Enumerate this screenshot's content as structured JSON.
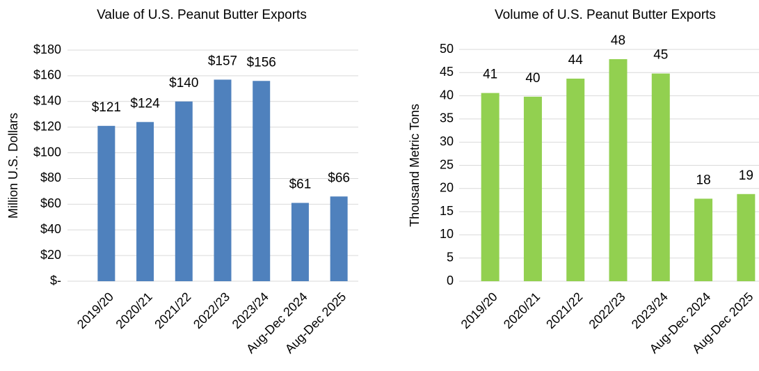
{
  "chart_data": [
    {
      "type": "bar",
      "title": "Value of U.S. Peanut Butter Exports",
      "y_label": "Million U.S. Dollars",
      "categories": [
        "2019/20",
        "2020/21",
        "2021/22",
        "2022/23",
        "2023/24",
        "Aug-Dec 2024",
        "Aug-Dec 2025"
      ],
      "values": [
        121,
        124,
        140,
        157,
        156,
        61,
        66
      ],
      "value_labels": [
        "$121",
        "$124",
        "$140",
        "$157",
        "$156",
        "$61",
        "$66"
      ],
      "color": "#4f81bd",
      "ylim": [
        0,
        180
      ],
      "yticks": [
        {
          "value": 0,
          "label": "$-"
        },
        {
          "value": 20,
          "label": "$20"
        },
        {
          "value": 40,
          "label": "$40"
        },
        {
          "value": 60,
          "label": "$60"
        },
        {
          "value": 80,
          "label": "$80"
        },
        {
          "value": 100,
          "label": "$100"
        },
        {
          "value": 120,
          "label": "$120"
        },
        {
          "value": 140,
          "label": "$140"
        },
        {
          "value": 160,
          "label": "$160"
        },
        {
          "value": 180,
          "label": "$180"
        }
      ],
      "grid": true
    },
    {
      "type": "bar",
      "title": "Volume of U.S. Peanut Butter Exports",
      "y_label": "Thousand Metric Tons",
      "categories": [
        "2019/20",
        "2020/21",
        "2021/22",
        "2022/23",
        "2023/24",
        "Aug-Dec 2024",
        "Aug-Dec 2025"
      ],
      "values": [
        40.6,
        39.8,
        43.7,
        47.9,
        44.8,
        17.8,
        18.8
      ],
      "value_labels": [
        "41",
        "40",
        "44",
        "48",
        "45",
        "18",
        "19"
      ],
      "color": "#92d050",
      "ylim": [
        0,
        50
      ],
      "yticks": [
        0,
        5,
        10,
        15,
        20,
        25,
        30,
        35,
        40,
        45,
        50
      ],
      "grid": true
    }
  ]
}
